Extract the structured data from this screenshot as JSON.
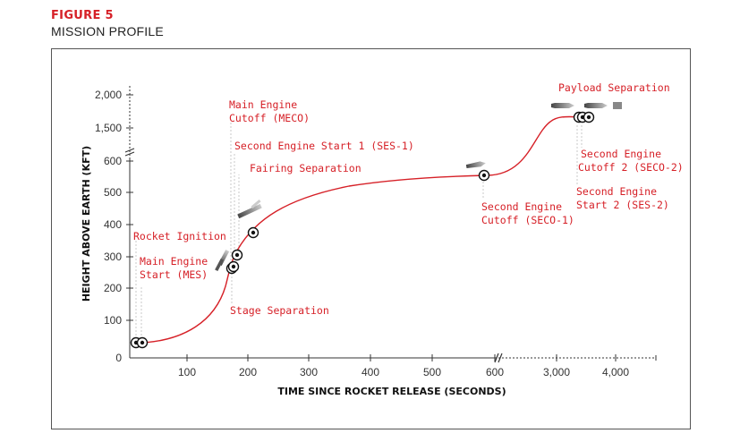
{
  "figure": {
    "label": "FIGURE 5",
    "title": "MISSION PROFILE"
  },
  "colors": {
    "accent": "#d62027",
    "axis": "#333333"
  },
  "chart_data": {
    "type": "line",
    "title": "MISSION PROFILE",
    "xlabel": "TIME SINCE ROCKET RELEASE (SECONDS)",
    "ylabel": "HEIGHT ABOVE EARTH (KFT)",
    "x_ticks": [
      "100",
      "200",
      "300",
      "400",
      "500",
      "600",
      "3,000",
      "4,000"
    ],
    "y_ticks": [
      "100",
      "200",
      "300",
      "400",
      "500",
      "600",
      "1,500",
      "2,000"
    ],
    "y_origin_label": "0",
    "x_axis_break": "between 600 and 3,000",
    "y_axis_break": "between 600 and 1,500",
    "grid": false,
    "series": [
      {
        "line_color": "#d62027",
        "points": [
          {
            "x": 0,
            "y": 38
          },
          {
            "x": 80,
            "y": 55
          },
          {
            "x": 140,
            "y": 140
          },
          {
            "x": 170,
            "y": 255
          },
          {
            "x": 200,
            "y": 345
          },
          {
            "x": 250,
            "y": 420
          },
          {
            "x": 350,
            "y": 490
          },
          {
            "x": 500,
            "y": 540
          },
          {
            "x": 600,
            "y": 552
          },
          {
            "x": 3300,
            "y": 1620
          },
          {
            "x": 3700,
            "y": 1640
          }
        ]
      }
    ],
    "events": [
      {
        "name": "Rocket Ignition",
        "x": 15,
        "y": 37
      },
      {
        "name": "Main Engine Start (MES)",
        "x": 25,
        "y": 37
      },
      {
        "name": "Stage Separation",
        "x": 175,
        "y": 260
      },
      {
        "name": "Main Engine Cutoff (MECO)",
        "x": 178,
        "y": 265
      },
      {
        "name": "Second Engine Start 1 (SES-1)",
        "x": 185,
        "y": 305
      },
      {
        "name": "Fairing Separation",
        "x": 210,
        "y": 375
      },
      {
        "name": "Second Engine Cutoff (SECO-1)",
        "x": 590,
        "y": 552
      },
      {
        "name": "Second Engine Start 2 (SES-2)",
        "x": 3400,
        "y": 1630
      },
      {
        "name": "Second Engine Cutoff 2 (SECO-2)",
        "x": 3450,
        "y": 1630
      },
      {
        "name": "Payload Separation",
        "x": 3550,
        "y": 1630
      }
    ],
    "annotations": {
      "rocket_ignition": "Rocket Ignition",
      "mes_1": "Main Engine",
      "mes_2": "Start (MES)",
      "meco_1": "Main Engine",
      "meco_2": "Cutoff (MECO)",
      "ses1": "Second Engine Start 1 (SES-1)",
      "fairing": "Fairing Separation",
      "stage_sep": "Stage Separation",
      "seco1_1": "Second Engine",
      "seco1_2": "Cutoff (SECO-1)",
      "payload": "Payload Separation",
      "seco2_1": "Second Engine",
      "seco2_2": "Cutoff 2 (SECO-2)",
      "ses2_1": "Second Engine",
      "ses2_2": "Start 2 (SES-2)"
    }
  }
}
